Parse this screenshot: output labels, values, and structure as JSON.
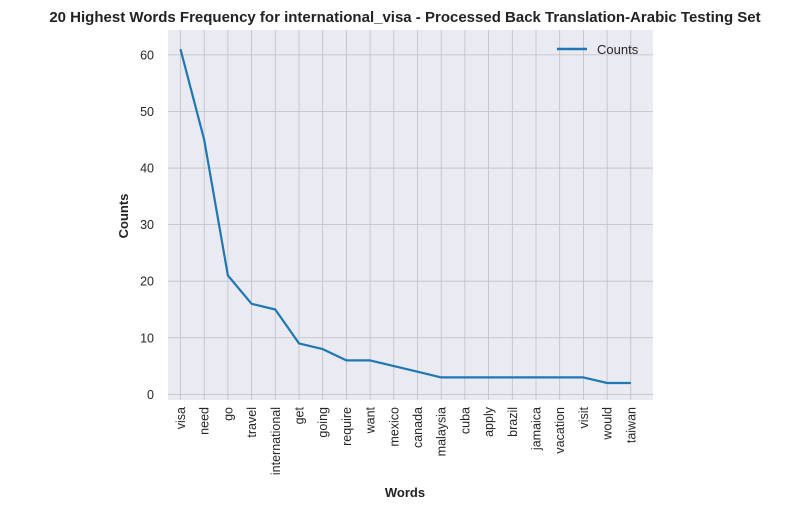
{
  "chart_data": {
    "type": "line",
    "title": "20 Highest Words Frequency for international_visa - Processed Back Translation-Arabic Testing Set",
    "xlabel": "Words",
    "ylabel": "Counts",
    "categories": [
      "visa",
      "need",
      "go",
      "travel",
      "international",
      "get",
      "going",
      "require",
      "want",
      "mexico",
      "canada",
      "malaysia",
      "cuba",
      "apply",
      "brazil",
      "jamaica",
      "vacation",
      "visit",
      "would",
      "taiwan"
    ],
    "series": [
      {
        "name": "Counts",
        "values": [
          61,
          45,
          21,
          16,
          15,
          9,
          8,
          6,
          6,
          5,
          4,
          3,
          3,
          3,
          3,
          3,
          3,
          3,
          2,
          2
        ]
      }
    ],
    "yticks": [
      0,
      10,
      20,
      30,
      40,
      50,
      60
    ],
    "ylim": [
      -1.0,
      64.4
    ],
    "grid": true,
    "legend_position": "top-right",
    "colors": {
      "line": "#1f77b4",
      "plot_background": "#eaeaf2",
      "grid": "#c0c0c0"
    }
  }
}
